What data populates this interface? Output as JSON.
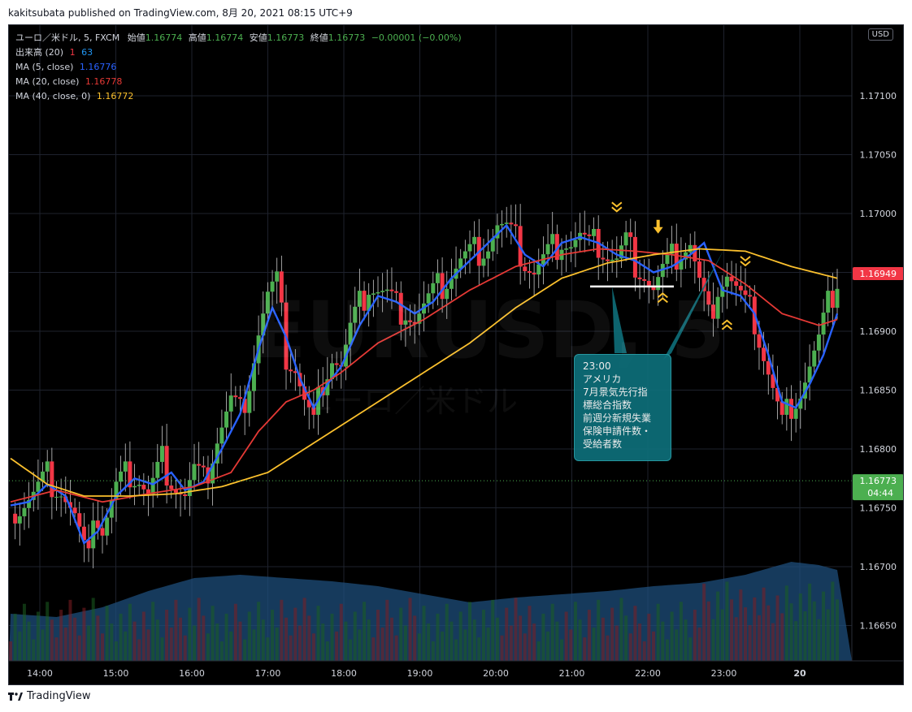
{
  "header": {
    "text": "kakitsubata published on TradingView.com, 8月 20, 2021 08:15 UTC+9"
  },
  "footer": {
    "brand": "TradingView"
  },
  "legend": {
    "symbol": "ユーロ／米ドル, 5, FXCM",
    "open_label": "始値",
    "open": "1.16774",
    "high_label": "高値",
    "high": "1.16774",
    "low_label": "安値",
    "low": "1.16773",
    "close_label": "終値",
    "close": "1.16773",
    "change": "−0.00001 (−0.00%)",
    "volume_label": "出来高 (20)",
    "volume_a": "1",
    "volume_b": "63",
    "ma5_label": "MA (5, close)",
    "ma5": "1.16776",
    "ma20_label": "MA (20, close)",
    "ma20": "1.16778",
    "ma40_label": "MA (40, close, 0)",
    "ma40": "1.16772"
  },
  "currency": "USD",
  "watermark": {
    "symbol": "EURUSD, 5",
    "name": "ユーロ／米ドル"
  },
  "note": {
    "lines": [
      "23:00",
      "アメリカ",
      "7月景気先行指",
      "標総合指数",
      "前週分新規失業",
      "保険申請件数・",
      "受給者数"
    ]
  },
  "colors": {
    "up": "#4caf50",
    "down": "#f23645",
    "ma5": "#2962ff",
    "ma20": "#e53935",
    "ma40": "#fbc02d",
    "volume_ma": "#1e4d7b",
    "price_tag": "#f23645",
    "last_tag": "#4caf50"
  },
  "chart_data": {
    "type": "candlestick",
    "price_axis": {
      "ticks": [
        "1.17100",
        "1.17050",
        "1.17000",
        "1.16950",
        "1.16900",
        "1.16850",
        "1.16800",
        "1.16750",
        "1.16700",
        "1.16650"
      ],
      "top_partial_label": "0",
      "ylim": [
        1.1662,
        1.1716
      ]
    },
    "time_axis": {
      "ticks": [
        "14:00",
        "15:00",
        "16:00",
        "17:00",
        "18:00",
        "19:00",
        "20:00",
        "21:00",
        "22:00",
        "23:00",
        "20"
      ]
    },
    "current_price_tag": "1.16949",
    "last_price_tag": "1.16773",
    "countdown": "04:44",
    "hline": 1.16938,
    "close_path": [
      [
        0,
        1.16745
      ],
      [
        2,
        1.1675
      ],
      [
        5,
        1.1676
      ],
      [
        8,
        1.16775
      ],
      [
        11,
        1.16765
      ],
      [
        14,
        1.1674
      ],
      [
        16,
        1.1671
      ],
      [
        18,
        1.1675
      ],
      [
        20,
        1.1673
      ],
      [
        23,
        1.16765
      ],
      [
        26,
        1.1678
      ],
      [
        28,
        1.16775
      ],
      [
        30,
        1.1676
      ],
      [
        33,
        1.1679
      ],
      [
        36,
        1.1677
      ],
      [
        38,
        1.1676
      ],
      [
        40,
        1.1678
      ],
      [
        42,
        1.1677
      ],
      [
        45,
        1.1681
      ],
      [
        48,
        1.1684
      ],
      [
        50,
        1.1683
      ],
      [
        52,
        1.1686
      ],
      [
        54,
        1.169
      ],
      [
        56,
        1.1693
      ],
      [
        58,
        1.1694
      ],
      [
        60,
        1.1688
      ],
      [
        62,
        1.1687
      ],
      [
        64,
        1.1684
      ],
      [
        66,
        1.1682
      ],
      [
        68,
        1.1686
      ],
      [
        70,
        1.1688
      ],
      [
        72,
        1.1687
      ],
      [
        74,
        1.169
      ],
      [
        76,
        1.1692
      ],
      [
        78,
        1.1694
      ],
      [
        80,
        1.16935
      ],
      [
        82,
        1.1693
      ],
      [
        84,
        1.1692
      ],
      [
        86,
        1.1692
      ],
      [
        88,
        1.1691
      ],
      [
        90,
        1.1692
      ],
      [
        92,
        1.1693
      ],
      [
        94,
        1.1694
      ],
      [
        96,
        1.1695
      ],
      [
        98,
        1.1696
      ],
      [
        100,
        1.16965
      ],
      [
        102,
        1.1697
      ],
      [
        104,
        1.16975
      ],
      [
        106,
        1.1699
      ],
      [
        108,
        1.16985
      ],
      [
        110,
        1.16975
      ],
      [
        112,
        1.1696
      ],
      [
        114,
        1.1695
      ],
      [
        116,
        1.1696
      ],
      [
        118,
        1.1697
      ],
      [
        120,
        1.1698
      ],
      [
        122,
        1.16975
      ],
      [
        124,
        1.1698
      ],
      [
        126,
        1.1697
      ],
      [
        128,
        1.16975
      ],
      [
        130,
        1.16965
      ],
      [
        132,
        1.1696
      ],
      [
        134,
        1.16975
      ],
      [
        136,
        1.1696
      ],
      [
        138,
        1.1695
      ],
      [
        140,
        1.16935
      ],
      [
        142,
        1.1695
      ],
      [
        144,
        1.1696
      ],
      [
        146,
        1.1697
      ],
      [
        148,
        1.16975
      ],
      [
        150,
        1.1694
      ],
      [
        152,
        1.1691
      ],
      [
        154,
        1.1694
      ],
      [
        156,
        1.1695
      ],
      [
        158,
        1.16935
      ],
      [
        160,
        1.1692
      ],
      [
        162,
        1.1691
      ],
      [
        164,
        1.1688
      ],
      [
        166,
        1.1685
      ],
      [
        168,
        1.1682
      ],
      [
        170,
        1.1684
      ],
      [
        172,
        1.1685
      ],
      [
        174,
        1.1687
      ],
      [
        176,
        1.1689
      ],
      [
        178,
        1.1692
      ],
      [
        180,
        1.16945
      ]
    ],
    "series": [
      {
        "name": "MA (5, close)",
        "points": [
          [
            0,
            1.16752
          ],
          [
            4,
            1.16755
          ],
          [
            8,
            1.1677
          ],
          [
            12,
            1.1676
          ],
          [
            16,
            1.1672
          ],
          [
            19,
            1.1673
          ],
          [
            23,
            1.1676
          ],
          [
            27,
            1.16775
          ],
          [
            31,
            1.1677
          ],
          [
            35,
            1.1678
          ],
          [
            38,
            1.16765
          ],
          [
            42,
            1.16772
          ],
          [
            46,
            1.168
          ],
          [
            50,
            1.1683
          ],
          [
            54,
            1.16885
          ],
          [
            57,
            1.1692
          ],
          [
            60,
            1.16895
          ],
          [
            63,
            1.1686
          ],
          [
            66,
            1.16835
          ],
          [
            69,
            1.16855
          ],
          [
            72,
            1.1687
          ],
          [
            76,
            1.16905
          ],
          [
            80,
            1.1693
          ],
          [
            84,
            1.16925
          ],
          [
            88,
            1.16915
          ],
          [
            92,
            1.16925
          ],
          [
            96,
            1.16945
          ],
          [
            100,
            1.1696
          ],
          [
            104,
            1.16975
          ],
          [
            108,
            1.1699
          ],
          [
            112,
            1.16965
          ],
          [
            116,
            1.16955
          ],
          [
            120,
            1.16975
          ],
          [
            124,
            1.1698
          ],
          [
            128,
            1.16975
          ],
          [
            132,
            1.16965
          ],
          [
            136,
            1.1696
          ],
          [
            140,
            1.1695
          ],
          [
            144,
            1.16955
          ],
          [
            148,
            1.16965
          ],
          [
            151,
            1.16975
          ],
          [
            155,
            1.16935
          ],
          [
            159,
            1.1693
          ],
          [
            162,
            1.16915
          ],
          [
            165,
            1.1688
          ],
          [
            168,
            1.1684
          ],
          [
            171,
            1.16835
          ],
          [
            174,
            1.16855
          ],
          [
            177,
            1.1688
          ],
          [
            180,
            1.16915
          ]
        ]
      },
      {
        "name": "MA (20, close)",
        "points": [
          [
            0,
            1.16755
          ],
          [
            10,
            1.16765
          ],
          [
            20,
            1.16755
          ],
          [
            30,
            1.16762
          ],
          [
            40,
            1.16768
          ],
          [
            48,
            1.1678
          ],
          [
            54,
            1.16815
          ],
          [
            60,
            1.1684
          ],
          [
            66,
            1.1685
          ],
          [
            72,
            1.16865
          ],
          [
            80,
            1.1689
          ],
          [
            90,
            1.1691
          ],
          [
            100,
            1.16935
          ],
          [
            110,
            1.16955
          ],
          [
            120,
            1.16965
          ],
          [
            128,
            1.1697
          ],
          [
            136,
            1.16968
          ],
          [
            144,
            1.16965
          ],
          [
            152,
            1.1696
          ],
          [
            160,
            1.1694
          ],
          [
            168,
            1.16915
          ],
          [
            176,
            1.16905
          ],
          [
            180,
            1.1691
          ]
        ]
      },
      {
        "name": "MA (40, close, 0)",
        "points": [
          [
            0,
            1.16792
          ],
          [
            8,
            1.1677
          ],
          [
            16,
            1.1676
          ],
          [
            26,
            1.1676
          ],
          [
            36,
            1.16762
          ],
          [
            46,
            1.16768
          ],
          [
            56,
            1.1678
          ],
          [
            66,
            1.16805
          ],
          [
            76,
            1.1683
          ],
          [
            88,
            1.1686
          ],
          [
            100,
            1.1689
          ],
          [
            110,
            1.1692
          ],
          [
            120,
            1.16945
          ],
          [
            130,
            1.16958
          ],
          [
            140,
            1.16965
          ],
          [
            150,
            1.1697
          ],
          [
            160,
            1.16968
          ],
          [
            170,
            1.16955
          ],
          [
            180,
            1.16945
          ]
        ]
      },
      {
        "name": "出来高 (20)",
        "points": [
          [
            0,
            0.28
          ],
          [
            10,
            0.26
          ],
          [
            20,
            0.32
          ],
          [
            30,
            0.42
          ],
          [
            40,
            0.5
          ],
          [
            50,
            0.52
          ],
          [
            60,
            0.5
          ],
          [
            70,
            0.48
          ],
          [
            80,
            0.45
          ],
          [
            90,
            0.4
          ],
          [
            100,
            0.35
          ],
          [
            110,
            0.38
          ],
          [
            120,
            0.4
          ],
          [
            130,
            0.42
          ],
          [
            140,
            0.45
          ],
          [
            150,
            0.47
          ],
          [
            160,
            0.52
          ],
          [
            170,
            0.6
          ],
          [
            176,
            0.58
          ],
          [
            180,
            0.55
          ]
        ]
      }
    ],
    "markers": [
      {
        "type": "chevrons-down",
        "x": 132,
        "price": 1.17006,
        "color": "#fbc02d"
      },
      {
        "type": "arrow-down",
        "x": 141,
        "price": 1.16985,
        "color": "#fbc02d"
      },
      {
        "type": "chevrons-up",
        "x": 142,
        "price": 1.16928,
        "color": "#fbc02d"
      },
      {
        "type": "chevrons-down",
        "x": 160,
        "price": 1.1696,
        "color": "#fbc02d"
      },
      {
        "type": "chevrons-up",
        "x": 156,
        "price": 1.16905,
        "color": "#fbc02d"
      }
    ]
  }
}
